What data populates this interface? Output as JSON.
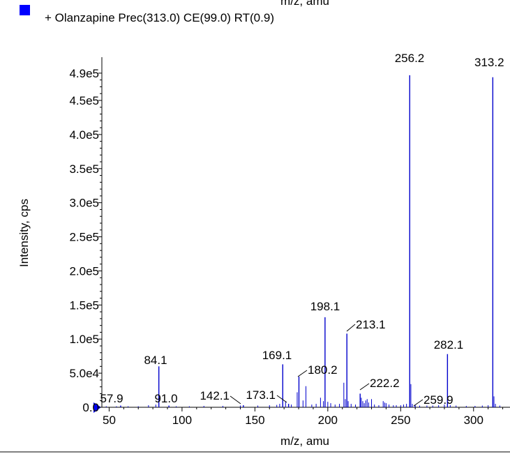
{
  "cut_title": "m/z, amu",
  "legend": {
    "label": "+ Olanzapine Prec(313.0) CE(99.0) RT(0.9)",
    "swatch_color": "#0000ff"
  },
  "chart_data": {
    "type": "bar",
    "xlabel": "m/z, amu",
    "ylabel": "Intensity, cps",
    "xlim": [
      45,
      325
    ],
    "ylim": [
      0,
      495000
    ],
    "x_ticks": [
      50,
      100,
      150,
      200,
      250,
      300
    ],
    "x_tick_labels": [
      "50",
      "100",
      "150",
      "200",
      "250",
      "300"
    ],
    "y_ticks": [
      0,
      50000,
      100000,
      150000,
      200000,
      250000,
      300000,
      350000,
      400000,
      450000,
      490000
    ],
    "y_tick_labels": [
      "0.0",
      "5.0e4",
      "1.0e5",
      "1.5e5",
      "2.0e5",
      "2.5e5",
      "3.0e5",
      "3.5e5",
      "4.0e5",
      "4.5e5",
      "4.9e5"
    ],
    "series_color": "#0000cc",
    "peaks": [
      {
        "x": 57.9,
        "y": 2500,
        "label": "57.9"
      },
      {
        "x": 84.1,
        "y": 60000,
        "label": "84.1"
      },
      {
        "x": 91.0,
        "y": 2500,
        "label": "91.0"
      },
      {
        "x": 142.1,
        "y": 3000,
        "label": "142.1"
      },
      {
        "x": 169.1,
        "y": 63000,
        "label": "169.1"
      },
      {
        "x": 173.1,
        "y": 5000,
        "label": "173.1"
      },
      {
        "x": 180.2,
        "y": 45000,
        "label": "180.2"
      },
      {
        "x": 198.1,
        "y": 132000,
        "label": "198.1"
      },
      {
        "x": 213.1,
        "y": 108000,
        "label": "213.1"
      },
      {
        "x": 222.2,
        "y": 20000,
        "label": "222.2"
      },
      {
        "x": 256.2,
        "y": 487000,
        "label": "256.2"
      },
      {
        "x": 259.9,
        "y": 3000,
        "label": "259.9"
      },
      {
        "x": 282.1,
        "y": 78000,
        "label": "282.1"
      },
      {
        "x": 313.2,
        "y": 484000,
        "label": "313.2"
      }
    ],
    "minor_peaks": [
      {
        "x": 48,
        "y": 1500
      },
      {
        "x": 55,
        "y": 1500
      },
      {
        "x": 63,
        "y": 1500
      },
      {
        "x": 70,
        "y": 1500
      },
      {
        "x": 77,
        "y": 3000
      },
      {
        "x": 82,
        "y": 4000
      },
      {
        "x": 96,
        "y": 1500
      },
      {
        "x": 105,
        "y": 1500
      },
      {
        "x": 115,
        "y": 2000
      },
      {
        "x": 128,
        "y": 2000
      },
      {
        "x": 140,
        "y": 2500
      },
      {
        "x": 152,
        "y": 2500
      },
      {
        "x": 160,
        "y": 3000
      },
      {
        "x": 165,
        "y": 3500
      },
      {
        "x": 167,
        "y": 5000
      },
      {
        "x": 171,
        "y": 8000
      },
      {
        "x": 175,
        "y": 4000
      },
      {
        "x": 179,
        "y": 22000
      },
      {
        "x": 183,
        "y": 10000
      },
      {
        "x": 185,
        "y": 31000
      },
      {
        "x": 189,
        "y": 4000
      },
      {
        "x": 192,
        "y": 5000
      },
      {
        "x": 195,
        "y": 14000
      },
      {
        "x": 197,
        "y": 9000
      },
      {
        "x": 200,
        "y": 8000
      },
      {
        "x": 202,
        "y": 6000
      },
      {
        "x": 205,
        "y": 4000
      },
      {
        "x": 208,
        "y": 5000
      },
      {
        "x": 211,
        "y": 36000
      },
      {
        "x": 212,
        "y": 12000
      },
      {
        "x": 214,
        "y": 9000
      },
      {
        "x": 216,
        "y": 5000
      },
      {
        "x": 219,
        "y": 4000
      },
      {
        "x": 223,
        "y": 14000
      },
      {
        "x": 224,
        "y": 9000
      },
      {
        "x": 225,
        "y": 6000
      },
      {
        "x": 226,
        "y": 10000
      },
      {
        "x": 227,
        "y": 12000
      },
      {
        "x": 228,
        "y": 7000
      },
      {
        "x": 230,
        "y": 12000
      },
      {
        "x": 232,
        "y": 4000
      },
      {
        "x": 235,
        "y": 3000
      },
      {
        "x": 238,
        "y": 9000
      },
      {
        "x": 239,
        "y": 7000
      },
      {
        "x": 240,
        "y": 6000
      },
      {
        "x": 242,
        "y": 4000
      },
      {
        "x": 245,
        "y": 3000
      },
      {
        "x": 247,
        "y": 3000
      },
      {
        "x": 250,
        "y": 3000
      },
      {
        "x": 252,
        "y": 4000
      },
      {
        "x": 254,
        "y": 5000
      },
      {
        "x": 257,
        "y": 34000
      },
      {
        "x": 258,
        "y": 5000
      },
      {
        "x": 263,
        "y": 2500
      },
      {
        "x": 268,
        "y": 2500
      },
      {
        "x": 272,
        "y": 2500
      },
      {
        "x": 276,
        "y": 3000
      },
      {
        "x": 280,
        "y": 4000
      },
      {
        "x": 284,
        "y": 3000
      },
      {
        "x": 288,
        "y": 2500
      },
      {
        "x": 295,
        "y": 2000
      },
      {
        "x": 301,
        "y": 2000
      },
      {
        "x": 306,
        "y": 2500
      },
      {
        "x": 310,
        "y": 3000
      },
      {
        "x": 314,
        "y": 16000
      },
      {
        "x": 315,
        "y": 5000
      },
      {
        "x": 318,
        "y": 2500
      }
    ],
    "grid": false,
    "legend_placement": "top-left"
  }
}
